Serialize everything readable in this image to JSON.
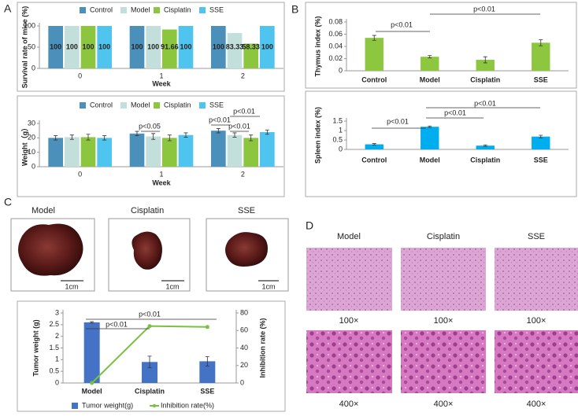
{
  "panel_labels": [
    "A",
    "B",
    "C",
    "D"
  ],
  "photos": {
    "labels": [
      "Model",
      "Cisplatin",
      "SSE"
    ],
    "scale": "1cm"
  },
  "histology": {
    "columns": [
      "Model",
      "Cisplatin",
      "SSE"
    ],
    "rows": [
      "100×",
      "400×"
    ]
  },
  "chart_data": [
    {
      "type": "bar",
      "y_label": "Survival rate of mice (%)",
      "x_label": "Week",
      "categories": [
        "0",
        "1",
        "2"
      ],
      "legend": "top",
      "data_labels": true,
      "ylim": [
        0,
        100
      ],
      "yticks": [
        0,
        50,
        100
      ],
      "series": [
        {
          "name": "Control",
          "color": "#4a90bb",
          "values": [
            100,
            100,
            100
          ]
        },
        {
          "name": "Model",
          "color": "#c3dfdb",
          "values": [
            100,
            100,
            83.33
          ]
        },
        {
          "name": "Cisplatin",
          "color": "#8cc63f",
          "values": [
            100,
            91.66,
            58.33
          ]
        },
        {
          "name": "SSE",
          "color": "#4fc4ee",
          "values": [
            100,
            100,
            100
          ]
        }
      ]
    },
    {
      "type": "bar",
      "y_label": "Weight（g）",
      "x_label": "Week",
      "categories": [
        "0",
        "1",
        "2"
      ],
      "legend": "top",
      "ylim": [
        0,
        30
      ],
      "yticks": [
        0,
        10,
        20,
        30
      ],
      "annotations": [
        "p<0.05",
        "p<0.01",
        "p<0.01",
        "p<0.01"
      ],
      "series": [
        {
          "name": "Control",
          "color": "#4a90bb",
          "values": [
            20,
            23,
            25
          ],
          "errors": [
            1.5,
            1.5,
            1.5
          ]
        },
        {
          "name": "Model",
          "color": "#c3dfdb",
          "values": [
            20.5,
            21,
            22
          ],
          "errors": [
            1.5,
            2,
            1.5
          ]
        },
        {
          "name": "Cisplatin",
          "color": "#8cc63f",
          "values": [
            20.5,
            20,
            20
          ],
          "errors": [
            2,
            2,
            2
          ]
        },
        {
          "name": "SSE",
          "color": "#4fc4ee",
          "values": [
            20,
            22,
            24
          ],
          "errors": [
            1.5,
            1.5,
            1.5
          ]
        }
      ]
    },
    {
      "type": "bar",
      "y_label": "Thymus index (%)",
      "categories": [
        "Control",
        "Model",
        "Cisplatin",
        "SSE"
      ],
      "color": "#8dc63f",
      "values": [
        0.054,
        0.023,
        0.018,
        0.046
      ],
      "errors": [
        0.004,
        0.002,
        0.005,
        0.005
      ],
      "ylim": [
        0,
        0.08
      ],
      "yticks": [
        0,
        0.02,
        0.04,
        0.06,
        0.08
      ],
      "annotations": [
        "p<0.01",
        "p<0.01"
      ]
    },
    {
      "type": "bar",
      "y_label": "Spleen index (%)",
      "categories": [
        "Control",
        "Model",
        "Cisplatin",
        "SSE"
      ],
      "color": "#00aeef",
      "values": [
        0.27,
        1.2,
        0.2,
        0.68
      ],
      "errors": [
        0.04,
        0.04,
        0.04,
        0.07
      ],
      "ylim": [
        0,
        1.5
      ],
      "yticks": [
        0,
        0.5,
        1,
        1.5
      ],
      "annotations": [
        "p<0.01",
        "p<0.01",
        "p<0.01"
      ]
    },
    {
      "type": "bar",
      "y_label": "Tumor weight (g)",
      "y2_label": "Inhibition rate (%)",
      "categories": [
        "Model",
        "Cisplatin",
        "SSE"
      ],
      "legend": "bottom",
      "ylim": [
        0,
        3
      ],
      "yticks": [
        0,
        0.5,
        1,
        1.5,
        2,
        2.5,
        3
      ],
      "y2lim": [
        0,
        80
      ],
      "y2ticks": [
        0,
        20,
        40,
        60,
        80
      ],
      "annotations": [
        "p<0.01",
        "p<0.01"
      ],
      "series": [
        {
          "name": "Tumor weight(g)",
          "color": "#4472c4",
          "values": [
            2.6,
            0.9,
            0.93
          ],
          "errors": [
            0.03,
            0.25,
            0.2
          ]
        },
        {
          "name": "Inhibition rate(%)",
          "color": "#7ac143",
          "values": [
            0,
            65,
            64
          ],
          "axis": "y2",
          "type": "line"
        }
      ]
    }
  ]
}
